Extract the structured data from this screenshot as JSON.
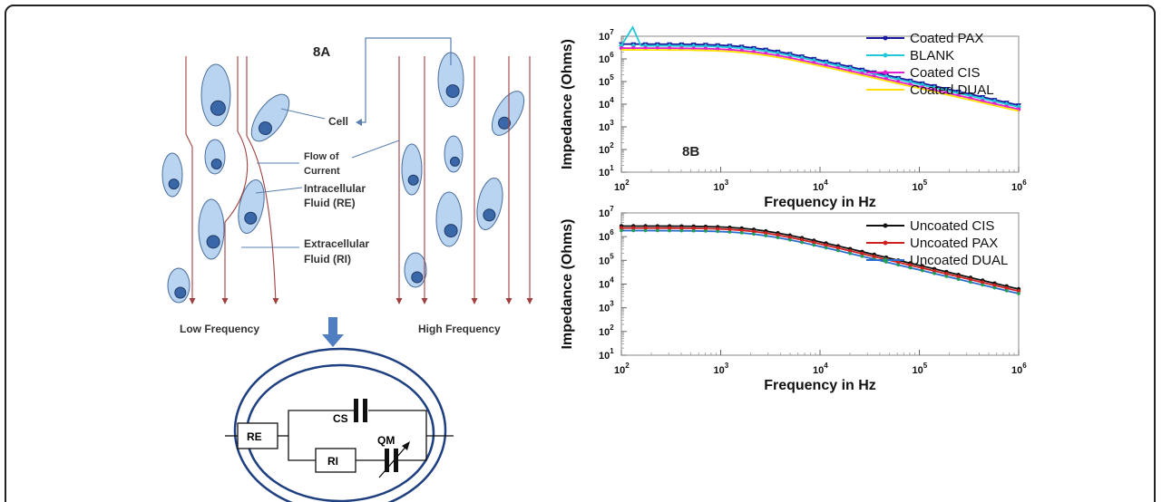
{
  "figure_a": {
    "title": "8A",
    "label_cell": "Cell",
    "label_flow": "Flow of\nCurrent",
    "label_intra": "Intracellular\nFluid (RE)",
    "label_extra": "Extracellular\nFluid (RI)",
    "label_low": "Low Frequency",
    "label_high": "High Frequency",
    "circuit": {
      "re": "RE",
      "ri": "RI",
      "cs": "CS",
      "qm": "QM"
    },
    "cell_color": "#b8d4f0",
    "nucleus_color": "#3a67a8",
    "current_color": "#a04040"
  },
  "chart_data": [
    {
      "type": "line",
      "title": "8B",
      "xlabel": "Frequency in Hz",
      "ylabel": "Impedance (Ohms)",
      "x_scale": "log",
      "y_scale": "log",
      "xlim": [
        100,
        1000000
      ],
      "ylim": [
        10,
        10000000
      ],
      "x_ticks": [
        "10^2",
        "10^3",
        "10^4",
        "10^5",
        "10^6"
      ],
      "y_ticks": [
        "10^1",
        "10^2",
        "10^3",
        "10^4",
        "10^5",
        "10^6",
        "10^7"
      ],
      "legend_position": "top-right",
      "series": [
        {
          "name": "Coated PAX",
          "color": "#1a1aa0",
          "marker": "triangle-down",
          "plateau": 4500000,
          "corner": 2000,
          "slope": -1.0
        },
        {
          "name": "BLANK",
          "color": "#20c8d8",
          "marker": "diamond",
          "plateau": 3800000,
          "corner": 2000,
          "slope": -1.0,
          "spike_at": 130,
          "spike_value": 25000000
        },
        {
          "name": "Coated CIS",
          "color": "#e020d0",
          "marker": "circle",
          "plateau": 3000000,
          "corner": 2000,
          "slope": -1.0
        },
        {
          "name": "Coated DUAL",
          "color": "#ffe000",
          "marker": "none",
          "plateau": 2500000,
          "corner": 2000,
          "slope": -1.0
        }
      ]
    },
    {
      "type": "line",
      "title": "",
      "xlabel": "Frequency in Hz",
      "ylabel": "Impedance (Ohms)",
      "x_scale": "log",
      "y_scale": "log",
      "xlim": [
        100,
        1000000
      ],
      "ylim": [
        10,
        10000000
      ],
      "x_ticks": [
        "10^2",
        "10^3",
        "10^4",
        "10^5",
        "10^6"
      ],
      "y_ticks": [
        "10^1",
        "10^2",
        "10^3",
        "10^4",
        "10^5",
        "10^6",
        "10^7"
      ],
      "legend_position": "top-right",
      "series": [
        {
          "name": "Uncoated CIS",
          "color": "#111111",
          "marker": "circle",
          "plateau": 2800000,
          "corner": 2200,
          "slope": -1.0
        },
        {
          "name": "Uncoated PAX",
          "color": "#d02020",
          "marker": "circle",
          "plateau": 2300000,
          "corner": 2200,
          "slope": -1.0
        },
        {
          "name": "Uncoated DUAL",
          "color": "#20a050",
          "marker": "none",
          "line_color": "#2a6fd0",
          "plateau": 1800000,
          "corner": 2200,
          "slope": -1.0
        }
      ]
    }
  ]
}
